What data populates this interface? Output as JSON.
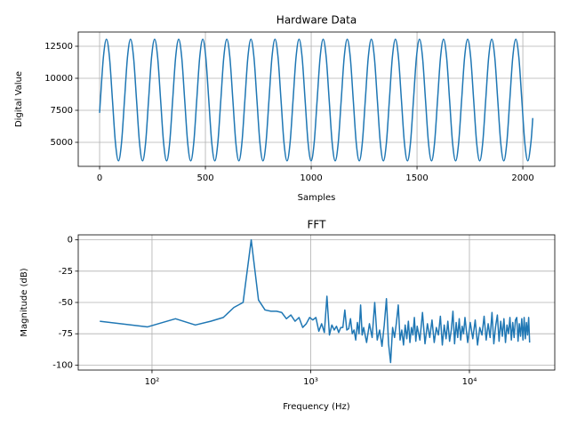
{
  "chart_data": [
    {
      "type": "line",
      "title": "Hardware Data",
      "xlabel": "Samples",
      "ylabel": "Digital Value",
      "color": "#1f77b4",
      "grid": true,
      "xlim": [
        -101,
        2151
      ],
      "ylim": [
        3125,
        13611
      ],
      "xticks": [
        0,
        500,
        1000,
        1500,
        2000
      ],
      "yticks": [
        5000,
        7500,
        10000,
        12500
      ],
      "x": [
        0,
        3.8,
        18.0,
        32.3,
        46.5,
        60.7,
        74.9,
        89.2,
        103.4,
        117.6,
        131.8,
        146.1,
        160.3,
        174.5,
        188.7,
        202.9,
        217.2,
        231.4,
        245.6,
        259.9,
        274.1,
        288.3,
        302.5,
        316.8,
        331.0,
        345.2,
        359.4,
        373.7,
        387.9,
        402.1,
        416.3,
        430.6,
        444.8,
        459.0,
        473.2,
        487.5,
        501.7,
        515.9,
        530.1,
        544.4,
        558.6,
        572.8,
        587.0,
        601.3,
        615.5,
        629.7,
        643.9,
        658.2,
        672.4,
        686.6,
        700.8,
        715.1,
        729.3,
        743.5,
        757.7,
        772.0,
        786.2,
        800.4,
        814.6,
        828.9,
        843.1,
        857.3,
        871.5,
        885.8,
        900.0,
        914.2,
        928.4,
        942.6,
        956.9,
        971.1,
        985.3,
        999.6,
        1013.8,
        1028.0,
        1042.2,
        1056.5,
        1070.7,
        1084.9,
        1099.1,
        1113.3,
        1127.6,
        1141.8,
        1156.0,
        1170.3,
        1184.5,
        1198.7,
        1212.9,
        1227.1,
        1241.4,
        1255.6,
        1269.8,
        1284.1,
        1298.3,
        1312.5,
        1326.7,
        1341.0,
        1355.2,
        1369.4,
        1383.6,
        1397.9,
        1412.1,
        1426.3,
        1440.5,
        1454.8,
        1469.0,
        1483.2,
        1497.4,
        1511.7,
        1525.9,
        1540.1,
        1554.3,
        1568.6,
        1582.8,
        1597.0,
        1611.2,
        1625.4,
        1639.7,
        1653.9,
        1668.1,
        1682.4,
        1696.6,
        1710.8,
        1725.0,
        1739.3,
        1753.5,
        1767.7,
        1781.9,
        1796.2,
        1810.4,
        1824.6,
        1838.8,
        1853.1,
        1867.3,
        1881.5,
        1895.7,
        1910.0,
        1924.2,
        1938.4,
        1952.6,
        1966.9,
        1981.1,
        1995.3,
        2009.5,
        2023.8,
        2038.0,
        2047
      ],
      "values": [
        7300,
        8300,
        11659,
        13050,
        11659,
        8300,
        4941,
        3550,
        4941,
        8300,
        11659,
        13050,
        11659,
        8300,
        4941,
        3550,
        4941,
        8300,
        11659,
        13050,
        11659,
        8300,
        4941,
        3550,
        4941,
        8300,
        11659,
        13050,
        11659,
        8300,
        4941,
        3550,
        4941,
        8300,
        11659,
        13050,
        11659,
        8300,
        4941,
        3550,
        4941,
        8300,
        11659,
        13050,
        11659,
        8300,
        4941,
        3550,
        4941,
        8300,
        11659,
        13050,
        11659,
        8300,
        4941,
        3550,
        4941,
        8300,
        11659,
        13050,
        11659,
        8300,
        4941,
        3550,
        4941,
        8300,
        11659,
        13050,
        11659,
        8300,
        4941,
        3550,
        4941,
        8300,
        11659,
        13050,
        11659,
        8300,
        4941,
        3550,
        4941,
        8300,
        11659,
        13050,
        11659,
        8300,
        4941,
        3550,
        4941,
        8300,
        11659,
        13050,
        11659,
        8300,
        4941,
        3550,
        4941,
        8300,
        11659,
        13050,
        11659,
        8300,
        4941,
        3550,
        4941,
        8300,
        11659,
        13050,
        11659,
        8300,
        4941,
        3550,
        4941,
        8300,
        11659,
        13050,
        11659,
        8300,
        4941,
        3550,
        4941,
        8300,
        11659,
        13050,
        11659,
        8300,
        4941,
        3550,
        4941,
        8300,
        11659,
        13050,
        11659,
        8300,
        4941,
        3550,
        4941,
        8300,
        11659,
        13050,
        11659,
        8300,
        4941,
        3550,
        4941,
        6900
      ]
    },
    {
      "type": "line",
      "title": "FFT",
      "xlabel": "Frequency (Hz)",
      "ylabel": "Magnitude (dB)",
      "color": "#1f77b4",
      "grid": true,
      "xscale": "log",
      "xlim": [
        34.3,
        34500
      ],
      "ylim": [
        -104,
        4
      ],
      "xticks": [
        {
          "value": 100,
          "label": "10²"
        },
        {
          "value": 1000,
          "label": "10³"
        },
        {
          "value": 10000,
          "label": "10⁴"
        }
      ],
      "yticks": [
        0,
        -25,
        -50,
        -75,
        -100
      ],
      "x": [
        46.9,
        93.8,
        140.6,
        187.5,
        234.4,
        281.3,
        328.1,
        375,
        421.9,
        468.8,
        515.6,
        562.5,
        609.4,
        656.3,
        703.1,
        750,
        796.9,
        843.8,
        890.6,
        937.5,
        984.4,
        1031.3,
        1078.1,
        1125,
        1171.9,
        1218.8,
        1265.6,
        1312.5,
        1359.4,
        1406.3,
        1453.1,
        1500,
        1546.9,
        1593.8,
        1640.6,
        1687.5,
        1734.4,
        1781.3,
        1828.1,
        1875,
        1921.9,
        1968.8,
        2015.6,
        2062.5,
        2109.4,
        2156.3,
        2250,
        2343.8,
        2437.5,
        2531.3,
        2625,
        2718.8,
        2812.5,
        2906.3,
        3000,
        3093.8,
        3187.5,
        3281.3,
        3375,
        3468.8,
        3562.5,
        3656.3,
        3750,
        3843.8,
        3937.5,
        4031.3,
        4125,
        4218.8,
        4312.5,
        4406.3,
        4500,
        4593.8,
        4687.5,
        4875,
        5062.5,
        5250,
        5437.5,
        5625,
        5812.5,
        6000,
        6187.5,
        6375,
        6562.5,
        6750,
        6937.5,
        7125,
        7312.5,
        7500,
        7687.5,
        7875,
        8062.5,
        8250,
        8437.5,
        8625,
        8812.5,
        9000,
        9187.5,
        9375,
        9750,
        10125,
        10500,
        10875,
        11250,
        11625,
        12000,
        12375,
        12750,
        13125,
        13500,
        13875,
        14250,
        14625,
        15000,
        15375,
        15750,
        16125,
        16500,
        16875,
        17250,
        17625,
        18000,
        18375,
        18750,
        19125,
        19500,
        19875,
        20250,
        20625,
        21000,
        21375,
        21750,
        22125,
        22500,
        22875,
        23250,
        23625,
        23953.1
      ],
      "values": [
        -65,
        -69.5,
        -63,
        -68,
        -65,
        -62,
        -54,
        -50,
        0,
        -48,
        -56,
        -57,
        -57,
        -58,
        -63,
        -60,
        -65,
        -62,
        -70,
        -67,
        -62,
        -64,
        -62,
        -73,
        -67,
        -74,
        -45,
        -76,
        -68,
        -72,
        -69,
        -74,
        -70,
        -70,
        -56,
        -72,
        -71,
        -63,
        -75,
        -72,
        -80,
        -66,
        -75,
        -52,
        -76,
        -70,
        -82,
        -67,
        -78,
        -50,
        -80,
        -72,
        -85,
        -68,
        -47,
        -83,
        -98,
        -70,
        -78,
        -66,
        -52,
        -80,
        -72,
        -84,
        -68,
        -79,
        -65,
        -82,
        -70,
        -76,
        -62,
        -81,
        -69,
        -80,
        -58,
        -83,
        -67,
        -78,
        -64,
        -82,
        -70,
        -76,
        -61,
        -84,
        -68,
        -79,
        -65,
        -81,
        -72,
        -57,
        -83,
        -66,
        -78,
        -63,
        -80,
        -69,
        -75,
        -62,
        -82,
        -66,
        -79,
        -64,
        -84,
        -70,
        -76,
        -61,
        -80,
        -67,
        -78,
        -58,
        -83,
        -69,
        -60,
        -81,
        -65,
        -77,
        -63,
        -82,
        -68,
        -75,
        -62,
        -80,
        -66,
        -78,
        -64,
        -62,
        -81,
        -67,
        -77,
        -63,
        -80,
        -62,
        -79,
        -66,
        -76,
        -62,
        -82
      ]
    }
  ]
}
